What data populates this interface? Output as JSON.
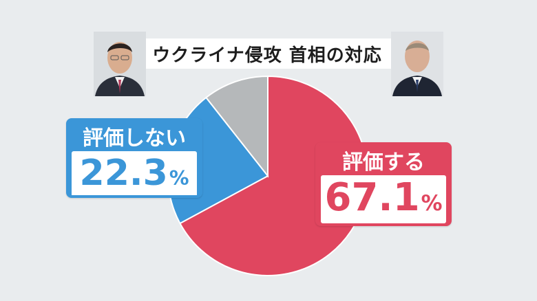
{
  "title": "ウクライナ侵攻 首相の対応",
  "colors": {
    "evaluate": "#e0465f",
    "not_evaluate": "#3b96d8",
    "other": "#b5b8ba",
    "background": "#e9ecee"
  },
  "labels": {
    "not_evaluate": {
      "head": "評価しない",
      "number": "22.3",
      "unit": "%"
    },
    "evaluate": {
      "head": "評価する",
      "number": "67.1",
      "unit": "%"
    }
  },
  "chart_data": {
    "type": "pie",
    "title": "ウクライナ侵攻 首相の対応",
    "slices": [
      {
        "label": "評価する",
        "value": 67.1,
        "color": "#e0465f"
      },
      {
        "label": "評価しない",
        "value": 22.3,
        "color": "#3b96d8"
      },
      {
        "label": "",
        "value": 10.6,
        "color": "#b5b8ba"
      }
    ],
    "start": "top",
    "direction": "clockwise"
  }
}
